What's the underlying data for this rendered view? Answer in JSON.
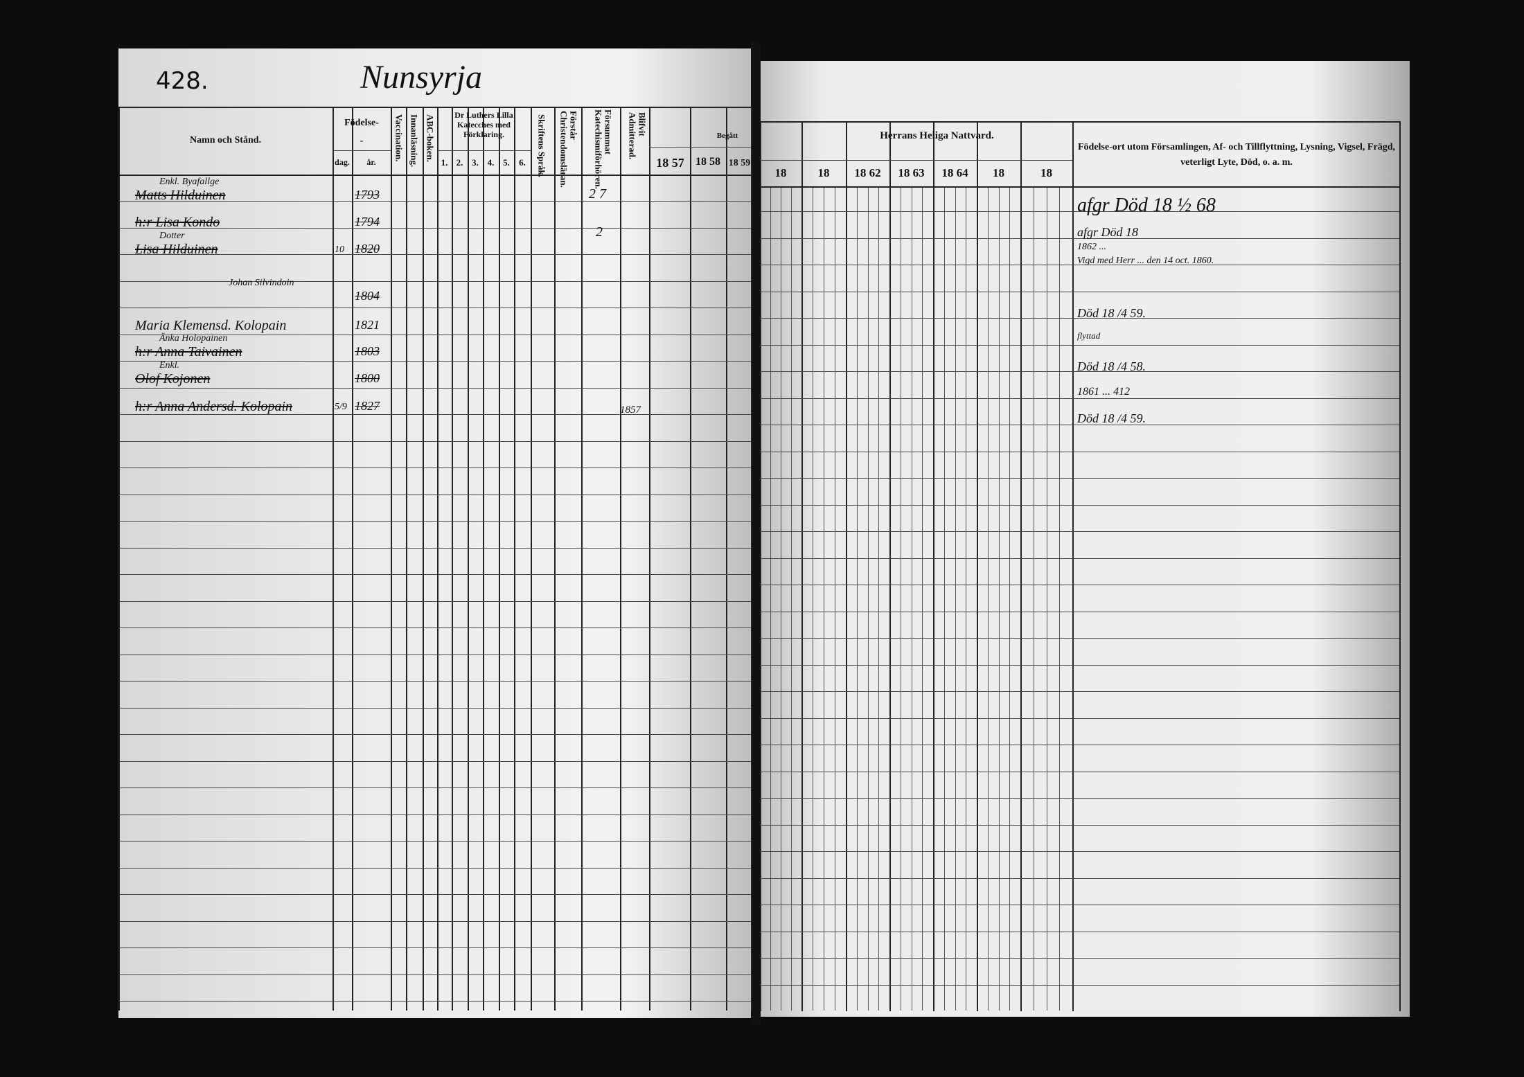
{
  "page_number": "428.",
  "village": "Nunsyrja",
  "left_header": {
    "name": "Namn och Stånd.",
    "birth": "Födelse-",
    "birth_dash": "-",
    "day": "dag.",
    "year": "år.",
    "vaccination": "Vaccination.",
    "innanlasning": "Innanläsning.",
    "abc": "ABC-boken.",
    "luther": "Dr Luthers Lilla Katecches med Förklaring.",
    "luther_cols": [
      "1.",
      "2.",
      "3.",
      "4.",
      "5.",
      "6."
    ],
    "skriftens": "Skriftens Språk.",
    "forstar": "Förstår Christendomsläran.",
    "forsummat": "Försummat Katechismiförhören.",
    "admitterad": "Blifvit Admitterad.",
    "begatt": "Begått",
    "years": [
      "18 57",
      "18 58",
      "18 59"
    ]
  },
  "right_header": {
    "nattvard": "Herrans Heliga Nattvard.",
    "years": [
      "18",
      "18",
      "18 62",
      "18 63",
      "18 64",
      "18",
      "18"
    ],
    "remarks": "Födelse-ort utom Församlingen, Af- och Tillflyttning, Lysning, Vigsel, Frägd, veterligt Lyte, Död, o. a. m."
  },
  "entries": [
    {
      "note": "Enkl. Byafallge",
      "name": "Matts Hilduinen",
      "day": "",
      "year": "1793"
    },
    {
      "note": "",
      "name": "h:r Lisa Kondo",
      "day": "",
      "year": "1794"
    },
    {
      "note": "Dotter",
      "name": "Lisa Hilduinen",
      "day": "10",
      "year": "1820"
    },
    {
      "note": "Johan Silvindoin",
      "name": "",
      "day": "",
      "year": "1804"
    },
    {
      "note": "",
      "name": "Maria Klemensd. Kolopain",
      "day": "",
      "year": "1821"
    },
    {
      "note": "Änka Holopainen",
      "name": "h:r Anna Taivainen",
      "day": "",
      "year": "1803"
    },
    {
      "note": "Enkl.",
      "name": "Olof Kojonen",
      "day": "",
      "year": "1800"
    },
    {
      "note": "",
      "name": "h:r Anna Andersd. Kolopain",
      "day": "5/9",
      "year": "1827"
    }
  ],
  "marks": {
    "m1": "2 7",
    "m2": "2",
    "m3": "1857"
  },
  "remarks": [
    "afgr Död 18 ½ 68",
    "afgr Död 18",
    "1862 ...",
    "Vigd med Herr ... den 14 oct. 1860.",
    "Död 18 /4 59.",
    "flyttad",
    "Död 18 /4 58.",
    "1861 ... 412",
    "Död 18 /4 59."
  ]
}
